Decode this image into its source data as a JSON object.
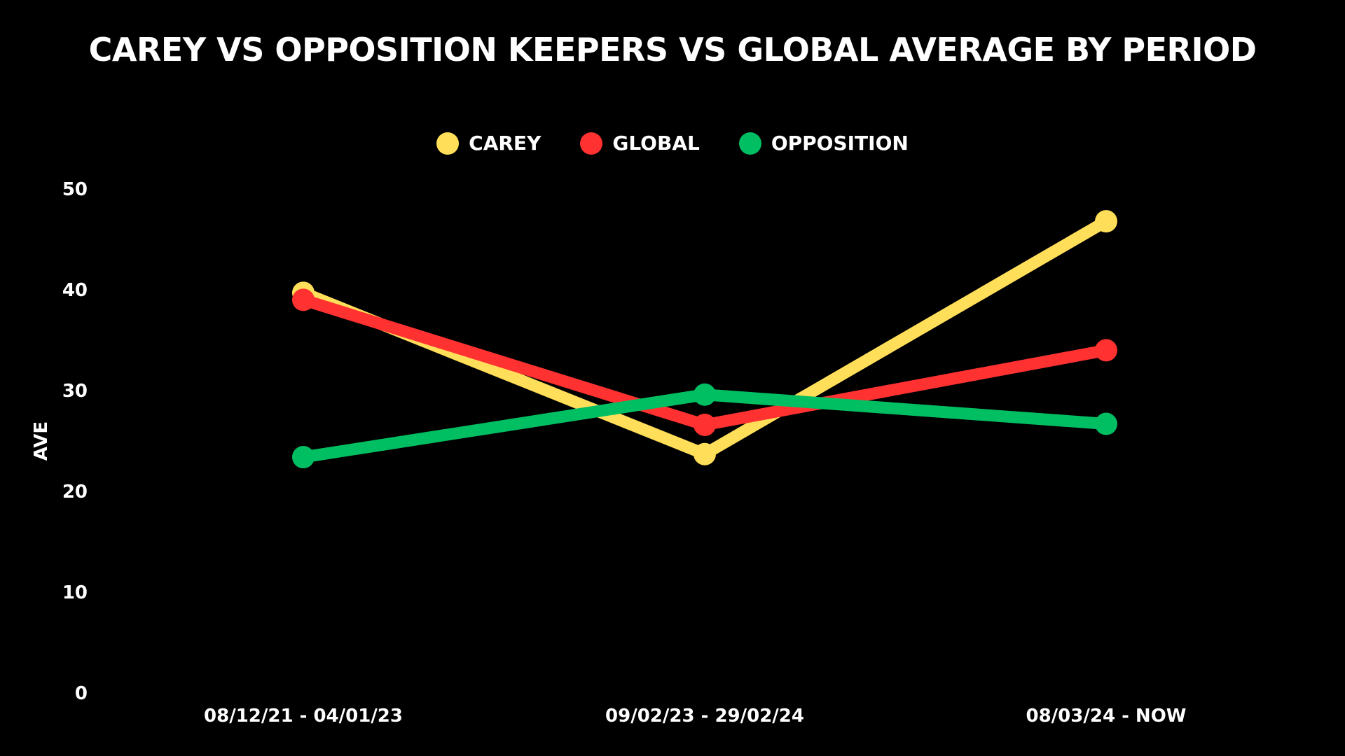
{
  "chart_data": {
    "type": "line",
    "title": "Carey vs Opposition Keepers vs Global Average by Period",
    "xlabel": "",
    "ylabel": "AVE",
    "categories": [
      "08/12/21 - 04/01/23",
      "09/02/23 - 29/02/24",
      "08/03/24 - NOW"
    ],
    "ylim": [
      0,
      50
    ],
    "yticks": [
      0,
      10,
      20,
      30,
      40,
      50
    ],
    "grid": false,
    "legend_position": "top-center",
    "series": [
      {
        "name": "CAREY",
        "color": "#FFDE59",
        "values": [
          39.7,
          23.7,
          46.8
        ]
      },
      {
        "name": "GLOBAL",
        "color": "#FF3131",
        "values": [
          39.0,
          26.6,
          34.0
        ]
      },
      {
        "name": "OPPOSITION",
        "color": "#00BF63",
        "values": [
          23.4,
          29.6,
          26.7
        ]
      }
    ]
  }
}
